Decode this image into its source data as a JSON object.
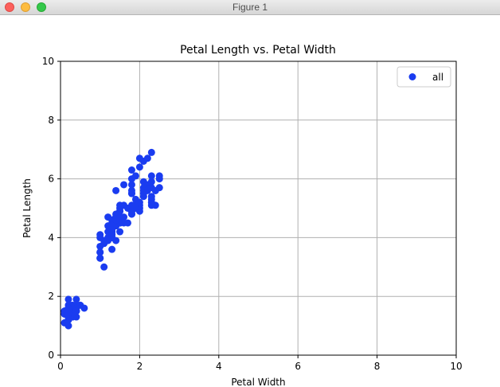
{
  "window": {
    "title": "Figure 1"
  },
  "colors": {
    "marker": "#1a3cf0",
    "grid": "#b0b0b0",
    "axes": "#000000"
  },
  "chart_data": {
    "type": "scatter",
    "title": "Petal Length vs. Petal Width",
    "xlabel": "Petal Width",
    "ylabel": "Petal Length",
    "xlim": [
      0,
      10
    ],
    "ylim": [
      0,
      10
    ],
    "xticks": [
      0,
      2,
      4,
      6,
      8,
      10
    ],
    "yticks": [
      0,
      2,
      4,
      6,
      8,
      10
    ],
    "grid": true,
    "legend": {
      "placement": "top-right",
      "entries": [
        "all"
      ]
    },
    "series": [
      {
        "name": "all",
        "points": [
          [
            0.2,
            1.4
          ],
          [
            0.2,
            1.4
          ],
          [
            0.2,
            1.3
          ],
          [
            0.2,
            1.5
          ],
          [
            0.2,
            1.4
          ],
          [
            0.4,
            1.7
          ],
          [
            0.3,
            1.4
          ],
          [
            0.2,
            1.5
          ],
          [
            0.2,
            1.4
          ],
          [
            0.1,
            1.5
          ],
          [
            0.2,
            1.5
          ],
          [
            0.2,
            1.6
          ],
          [
            0.1,
            1.4
          ],
          [
            0.1,
            1.1
          ],
          [
            0.2,
            1.2
          ],
          [
            0.4,
            1.5
          ],
          [
            0.4,
            1.3
          ],
          [
            0.3,
            1.4
          ],
          [
            0.3,
            1.7
          ],
          [
            0.3,
            1.5
          ],
          [
            0.2,
            1.7
          ],
          [
            0.4,
            1.5
          ],
          [
            0.2,
            1.0
          ],
          [
            0.5,
            1.7
          ],
          [
            0.2,
            1.9
          ],
          [
            0.2,
            1.6
          ],
          [
            0.4,
            1.6
          ],
          [
            0.2,
            1.5
          ],
          [
            0.2,
            1.4
          ],
          [
            0.2,
            1.6
          ],
          [
            0.2,
            1.6
          ],
          [
            0.4,
            1.5
          ],
          [
            0.1,
            1.5
          ],
          [
            0.2,
            1.4
          ],
          [
            0.2,
            1.5
          ],
          [
            0.2,
            1.2
          ],
          [
            0.2,
            1.3
          ],
          [
            0.1,
            1.4
          ],
          [
            0.2,
            1.3
          ],
          [
            0.2,
            1.5
          ],
          [
            0.3,
            1.3
          ],
          [
            0.3,
            1.3
          ],
          [
            0.2,
            1.3
          ],
          [
            0.6,
            1.6
          ],
          [
            0.4,
            1.9
          ],
          [
            0.3,
            1.4
          ],
          [
            0.2,
            1.6
          ],
          [
            0.2,
            1.4
          ],
          [
            0.2,
            1.5
          ],
          [
            0.2,
            1.4
          ],
          [
            1.4,
            4.7
          ],
          [
            1.5,
            4.5
          ],
          [
            1.5,
            4.9
          ],
          [
            1.3,
            4.0
          ],
          [
            1.5,
            4.6
          ],
          [
            1.3,
            4.5
          ],
          [
            1.6,
            4.7
          ],
          [
            1.0,
            3.3
          ],
          [
            1.3,
            4.6
          ],
          [
            1.4,
            3.9
          ],
          [
            1.0,
            3.5
          ],
          [
            1.5,
            4.2
          ],
          [
            1.0,
            4.0
          ],
          [
            1.4,
            4.7
          ],
          [
            1.3,
            3.6
          ],
          [
            1.4,
            4.4
          ],
          [
            1.5,
            4.5
          ],
          [
            1.0,
            4.1
          ],
          [
            1.5,
            4.5
          ],
          [
            1.1,
            3.9
          ],
          [
            1.8,
            4.8
          ],
          [
            1.3,
            4.0
          ],
          [
            1.5,
            4.9
          ],
          [
            1.2,
            4.7
          ],
          [
            1.3,
            4.3
          ],
          [
            1.4,
            4.4
          ],
          [
            1.4,
            4.8
          ],
          [
            1.7,
            5.0
          ],
          [
            1.5,
            4.5
          ],
          [
            1.0,
            3.5
          ],
          [
            1.1,
            3.8
          ],
          [
            1.0,
            3.7
          ],
          [
            1.2,
            3.9
          ],
          [
            1.6,
            5.1
          ],
          [
            1.5,
            4.5
          ],
          [
            1.6,
            4.5
          ],
          [
            1.5,
            4.7
          ],
          [
            1.3,
            4.4
          ],
          [
            1.3,
            4.1
          ],
          [
            1.3,
            4.0
          ],
          [
            1.2,
            4.4
          ],
          [
            1.4,
            4.6
          ],
          [
            1.2,
            4.0
          ],
          [
            1.0,
            3.3
          ],
          [
            1.3,
            4.2
          ],
          [
            1.2,
            4.2
          ],
          [
            1.3,
            4.2
          ],
          [
            1.3,
            4.3
          ],
          [
            1.1,
            3.0
          ],
          [
            1.3,
            4.1
          ],
          [
            2.5,
            6.0
          ],
          [
            1.9,
            5.1
          ],
          [
            2.1,
            5.9
          ],
          [
            1.8,
            5.6
          ],
          [
            2.2,
            5.8
          ],
          [
            2.1,
            6.6
          ],
          [
            1.7,
            4.5
          ],
          [
            1.8,
            6.3
          ],
          [
            1.8,
            5.8
          ],
          [
            2.5,
            6.1
          ],
          [
            2.0,
            5.1
          ],
          [
            1.9,
            5.3
          ],
          [
            2.1,
            5.5
          ],
          [
            2.0,
            5.0
          ],
          [
            2.4,
            5.1
          ],
          [
            2.3,
            5.3
          ],
          [
            1.8,
            5.5
          ],
          [
            2.2,
            6.7
          ],
          [
            2.3,
            6.9
          ],
          [
            1.5,
            5.0
          ],
          [
            2.3,
            5.7
          ],
          [
            2.0,
            4.9
          ],
          [
            2.0,
            6.7
          ],
          [
            1.8,
            4.9
          ],
          [
            2.1,
            5.7
          ],
          [
            1.8,
            6.0
          ],
          [
            1.8,
            4.8
          ],
          [
            1.8,
            4.9
          ],
          [
            2.1,
            5.6
          ],
          [
            1.6,
            5.8
          ],
          [
            1.9,
            6.1
          ],
          [
            2.0,
            6.4
          ],
          [
            2.2,
            5.6
          ],
          [
            1.5,
            5.1
          ],
          [
            1.4,
            5.6
          ],
          [
            2.3,
            6.1
          ],
          [
            2.4,
            5.6
          ],
          [
            1.8,
            5.5
          ],
          [
            1.8,
            4.8
          ],
          [
            2.1,
            5.4
          ],
          [
            2.4,
            5.6
          ],
          [
            2.3,
            5.1
          ],
          [
            1.9,
            5.1
          ],
          [
            2.3,
            5.9
          ],
          [
            2.5,
            5.7
          ],
          [
            2.3,
            5.2
          ],
          [
            1.9,
            5.0
          ],
          [
            2.0,
            5.2
          ],
          [
            2.3,
            5.4
          ],
          [
            1.8,
            5.1
          ]
        ]
      }
    ]
  }
}
